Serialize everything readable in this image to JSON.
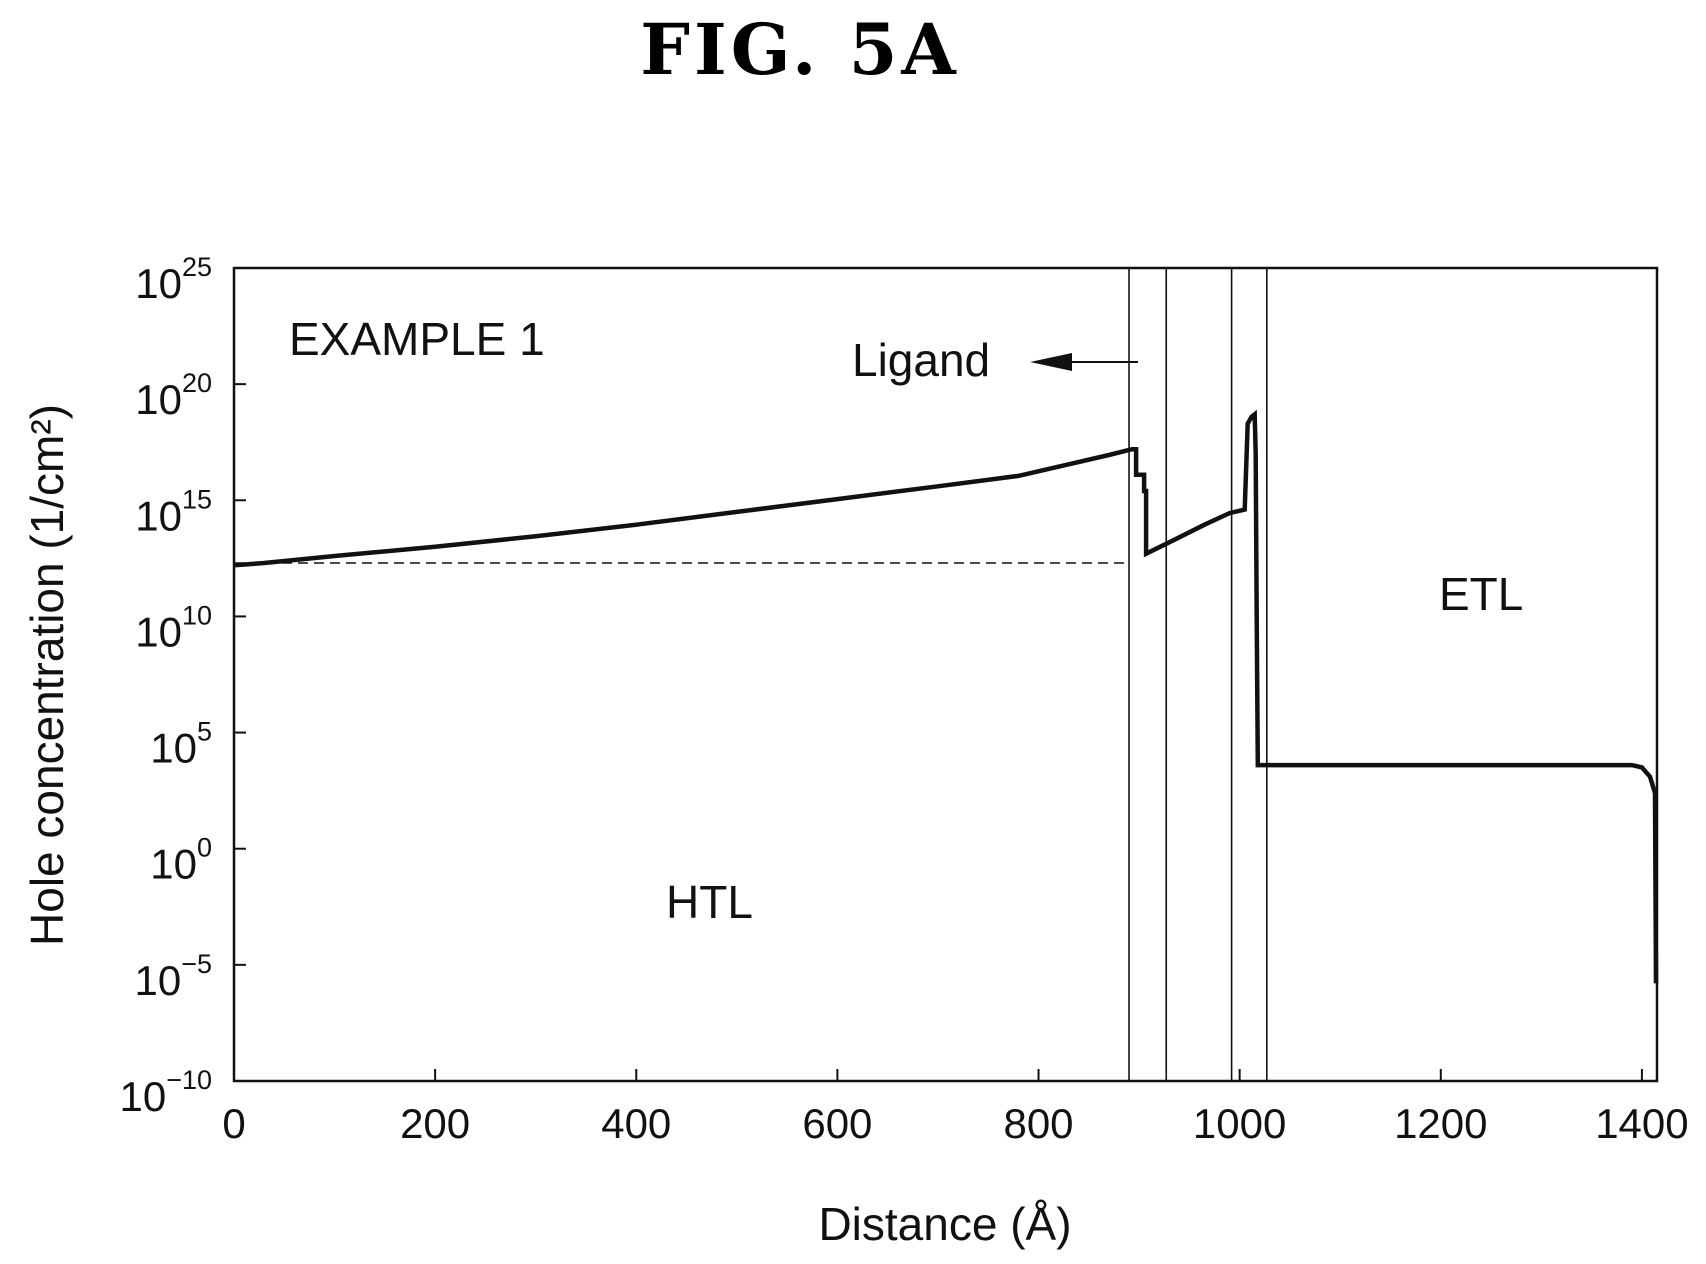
{
  "figure": {
    "title": "FIG. 5A"
  },
  "chart_data": {
    "type": "line",
    "xlabel": "Distance (Å)",
    "ylabel": "Hole concentration (1/cm²)",
    "yscale": "log",
    "xlim": [
      0,
      1415
    ],
    "ylim_exponent": [
      -10,
      25
    ],
    "x_ticks": [
      "0",
      "200",
      "400",
      "600",
      "800",
      "1000",
      "1200",
      "1400"
    ],
    "x_tick_values": [
      0,
      200,
      400,
      600,
      800,
      1000,
      1200,
      1400
    ],
    "y_tick_exponents": [
      25,
      20,
      15,
      10,
      5,
      0,
      -5,
      -10
    ],
    "y_tick_base": "10",
    "grid": false,
    "annotations": [
      {
        "id": "example",
        "text": "EXAMPLE 1"
      },
      {
        "id": "ligand",
        "text": "Ligand"
      },
      {
        "id": "htl",
        "text": "HTL"
      },
      {
        "id": "etl",
        "text": "ETL"
      }
    ],
    "layer_boundaries_x": [
      890,
      927,
      992,
      1027
    ],
    "reference_level_exponent": 12.3,
    "reference_x_range": [
      0,
      890
    ],
    "series": [
      {
        "points_x": [
          0,
          30,
          100,
          200,
          300,
          400,
          500,
          600,
          700,
          780,
          830,
          870,
          893,
          897,
          897,
          905,
          905,
          907,
          907,
          935,
          965,
          990,
          1005,
          1008,
          1012,
          1015,
          1016,
          1017,
          1018,
          1018,
          1100,
          1200,
          1300,
          1390,
          1400,
          1408,
          1413,
          1414
        ],
        "points_exponent": [
          12.2,
          12.3,
          12.6,
          13.0,
          13.45,
          13.95,
          14.5,
          15.05,
          15.6,
          16.05,
          16.55,
          16.95,
          17.2,
          17.2,
          16.1,
          16.1,
          15.4,
          15.4,
          12.7,
          13.3,
          13.95,
          14.45,
          14.6,
          18.3,
          18.6,
          18.7,
          17.0,
          10.0,
          3.6,
          3.6,
          3.6,
          3.6,
          3.6,
          3.6,
          3.5,
          3.1,
          2.4,
          -5.8
        ]
      }
    ]
  }
}
